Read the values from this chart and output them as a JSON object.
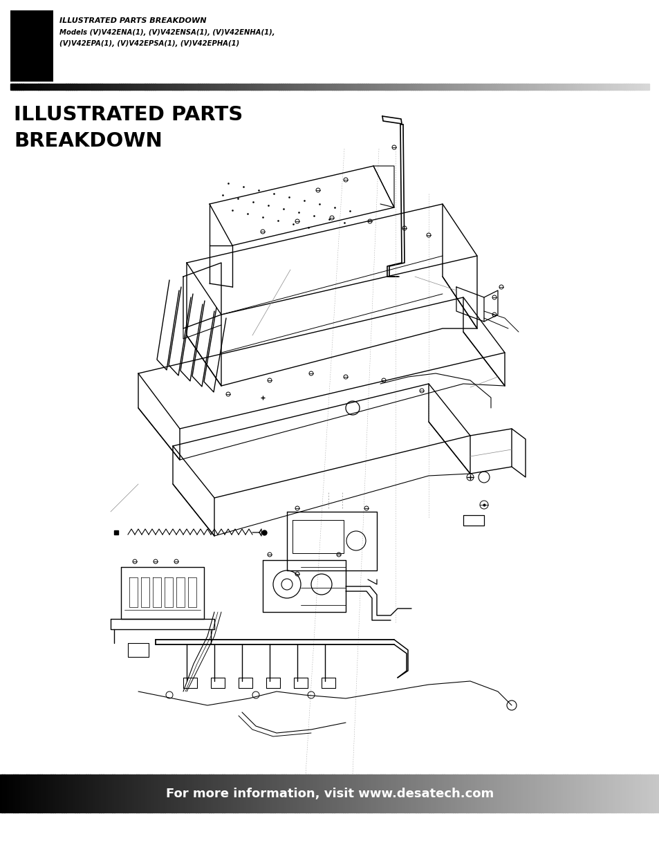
{
  "page_bg": "#ffffff",
  "header_title": "ILLUSTRATED PARTS BREAKDOWN",
  "header_models_line1": "Models (V)V42ENA(1), (V)V42ENSA(1), (V)V42ENHA(1),",
  "header_models_line2": "(V)V42EPA(1), (V)V42EPSA(1), (V)V42EPHA(1)",
  "section_title_line1": "ILLUSTRATED PARTS",
  "section_title_line2": "BREAKDOWN",
  "footer_text": "For more information, visit www.desatech.com",
  "footer_text_color": "#ffffff",
  "lw": 0.9,
  "lc": "#000000"
}
